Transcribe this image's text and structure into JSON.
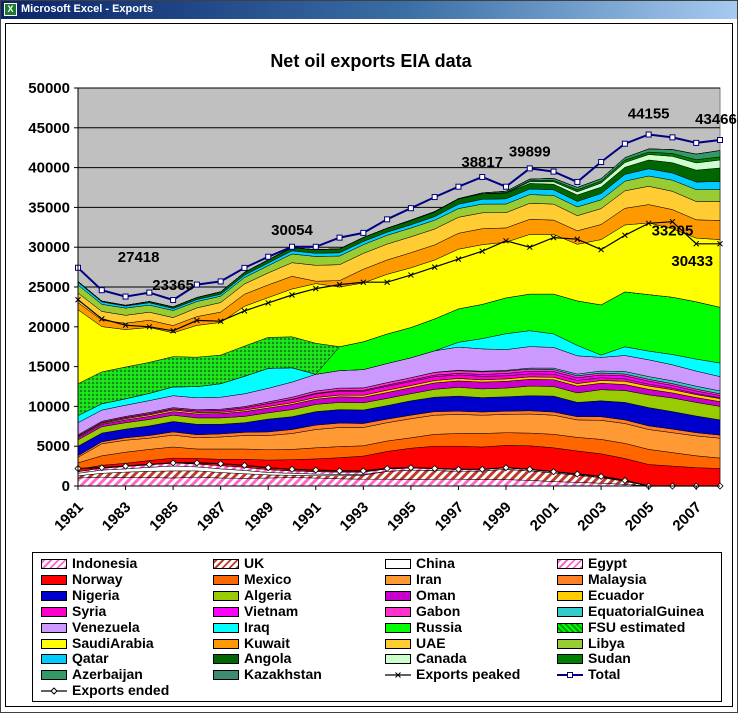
{
  "window": {
    "title": "Microsoft Excel - Exports",
    "icon": "excel-icon"
  },
  "chart_data": {
    "type": "area",
    "stacked": true,
    "title": "Net oil exports EIA data",
    "xlabel": "",
    "ylabel": "",
    "ylim": [
      0,
      50000
    ],
    "yticks": [
      0,
      5000,
      10000,
      15000,
      20000,
      25000,
      30000,
      35000,
      40000,
      45000,
      50000
    ],
    "x": [
      1981,
      1982,
      1983,
      1984,
      1985,
      1986,
      1987,
      1988,
      1989,
      1990,
      1991,
      1992,
      1993,
      1994,
      1995,
      1996,
      1997,
      1998,
      1999,
      2000,
      2001,
      2002,
      2003,
      2004,
      2005,
      2006,
      2007,
      2008
    ],
    "xtick_labels": [
      "1981",
      "1983",
      "1985",
      "1987",
      "1989",
      "1991",
      "1993",
      "1995",
      "1997",
      "1999",
      "2001",
      "2003",
      "2005",
      "2007"
    ],
    "grid": true,
    "plot_background": "#c0c0c0",
    "legend_position": "bottom",
    "series": [
      {
        "name": "Indonesia",
        "color": "#ff99cc",
        "pattern": "hatch-light",
        "values": [
          1000,
          1100,
          1050,
          1050,
          1000,
          1100,
          1000,
          950,
          1000,
          1050,
          1000,
          900,
          850,
          850,
          800,
          850,
          850,
          800,
          800,
          700,
          550,
          450,
          350,
          200,
          0,
          0,
          0,
          0
        ]
      },
      {
        "name": "UK",
        "color": "#c0504d",
        "pattern": "hatch-dark",
        "values": [
          300,
          500,
          700,
          800,
          900,
          800,
          700,
          600,
          400,
          300,
          300,
          400,
          500,
          1000,
          1200,
          1100,
          1000,
          1100,
          1300,
          1200,
          1100,
          900,
          700,
          400,
          0,
          0,
          0,
          0
        ]
      },
      {
        "name": "China",
        "color": "#ffffff",
        "pattern": "solid",
        "values": [
          300,
          400,
          400,
          500,
          600,
          500,
          450,
          400,
          300,
          250,
          200,
          150,
          100,
          0,
          0,
          0,
          0,
          0,
          0,
          0,
          0,
          0,
          0,
          0,
          0,
          0,
          0,
          0
        ]
      },
      {
        "name": "Egypt",
        "color": "#ff99cc",
        "pattern": "hatch-light",
        "values": [
          200,
          250,
          300,
          350,
          400,
          350,
          400,
          400,
          350,
          300,
          300,
          300,
          300,
          300,
          250,
          250,
          250,
          200,
          200,
          150,
          150,
          100,
          100,
          50,
          0,
          0,
          0,
          0
        ]
      },
      {
        "name": "Norway",
        "color": "#ff0000",
        "values": [
          300,
          350,
          400,
          500,
          600,
          700,
          800,
          1000,
          1200,
          1400,
          1600,
          1800,
          2000,
          2200,
          2500,
          2800,
          2900,
          2800,
          2800,
          3000,
          3000,
          2950,
          2900,
          2800,
          2700,
          2500,
          2300,
          2200
        ]
      },
      {
        "name": "Mexico",
        "color": "#ff6600",
        "values": [
          800,
          1200,
          1400,
          1400,
          1400,
          1200,
          1300,
          1300,
          1300,
          1300,
          1400,
          1400,
          1300,
          1300,
          1300,
          1500,
          1600,
          1700,
          1600,
          1600,
          1700,
          1700,
          1800,
          1900,
          1900,
          1700,
          1500,
          1300
        ]
      },
      {
        "name": "Iran",
        "color": "#ff9933",
        "values": [
          700,
          1500,
          1500,
          1400,
          1500,
          1400,
          1500,
          1700,
          1800,
          2000,
          2300,
          2400,
          2300,
          2300,
          2400,
          2400,
          2400,
          2300,
          2300,
          2400,
          2400,
          2200,
          2400,
          2500,
          2500,
          2500,
          2500,
          2500
        ]
      },
      {
        "name": "Malaysia",
        "color": "#ff7f27",
        "values": [
          200,
          250,
          300,
          350,
          400,
          400,
          400,
          400,
          450,
          500,
          550,
          550,
          500,
          450,
          450,
          450,
          400,
          400,
          400,
          400,
          400,
          400,
          450,
          450,
          450,
          450,
          400,
          400
        ]
      },
      {
        "name": "Nigeria",
        "color": "#0000cc",
        "values": [
          1200,
          1100,
          1100,
          1200,
          1300,
          1300,
          1200,
          1200,
          1600,
          1600,
          1700,
          1700,
          1700,
          1700,
          1800,
          1800,
          1900,
          1800,
          1800,
          1900,
          2000,
          1800,
          2000,
          2200,
          2300,
          2200,
          2100,
          1900
        ]
      },
      {
        "name": "Algeria",
        "color": "#99cc00",
        "values": [
          800,
          800,
          800,
          800,
          800,
          800,
          800,
          800,
          800,
          900,
          900,
          900,
          900,
          900,
          900,
          1000,
          1100,
          1100,
          1100,
          1200,
          1200,
          1200,
          1400,
          1500,
          1600,
          1700,
          1700,
          1700
        ]
      },
      {
        "name": "Oman",
        "color": "#cc00cc",
        "values": [
          300,
          300,
          350,
          400,
          450,
          500,
          550,
          600,
          600,
          650,
          650,
          700,
          700,
          750,
          750,
          800,
          800,
          850,
          850,
          850,
          850,
          850,
          800,
          750,
          700,
          650,
          600,
          600
        ]
      },
      {
        "name": "Ecuador",
        "color": "#ffcc00",
        "values": [
          100,
          120,
          150,
          180,
          200,
          180,
          150,
          180,
          200,
          200,
          220,
          220,
          250,
          280,
          280,
          300,
          300,
          280,
          300,
          300,
          300,
          320,
          350,
          400,
          400,
          400,
          380,
          380
        ]
      },
      {
        "name": "Syria",
        "color": "#ff00cc",
        "values": [
          100,
          120,
          150,
          150,
          150,
          200,
          250,
          300,
          350,
          400,
          450,
          500,
          500,
          500,
          500,
          500,
          450,
          450,
          400,
          400,
          400,
          400,
          350,
          300,
          250,
          200,
          150,
          100
        ]
      },
      {
        "name": "Vietnam",
        "color": "#ff00ff",
        "values": [
          0,
          0,
          0,
          0,
          0,
          0,
          0,
          0,
          20,
          50,
          80,
          100,
          120,
          140,
          160,
          180,
          200,
          240,
          280,
          310,
          320,
          320,
          340,
          380,
          360,
          330,
          310,
          280
        ]
      },
      {
        "name": "Gabon",
        "color": "#ff33cc",
        "values": [
          150,
          140,
          150,
          150,
          150,
          150,
          150,
          150,
          200,
          250,
          280,
          280,
          300,
          320,
          320,
          340,
          340,
          320,
          300,
          280,
          260,
          250,
          250,
          240,
          240,
          230,
          230,
          220
        ]
      },
      {
        "name": "EquatorialGuinea",
        "color": "#33cccc",
        "values": [
          0,
          0,
          0,
          0,
          0,
          0,
          0,
          0,
          0,
          0,
          0,
          0,
          0,
          0,
          0,
          20,
          60,
          80,
          100,
          120,
          180,
          220,
          260,
          320,
          350,
          360,
          370,
          370
        ]
      },
      {
        "name": "Venezuela",
        "color": "#cc99ff",
        "values": [
          1500,
          1400,
          1400,
          1500,
          1500,
          1500,
          1500,
          1600,
          1700,
          1900,
          2100,
          2200,
          2300,
          2400,
          2500,
          2700,
          2900,
          2800,
          2600,
          2700,
          2600,
          2300,
          1700,
          2000,
          2100,
          2000,
          1900,
          1800
        ]
      },
      {
        "name": "Iraq",
        "color": "#00ffff",
        "values": [
          900,
          800,
          800,
          900,
          1100,
          1400,
          1700,
          2200,
          2500,
          1800,
          0,
          0,
          0,
          0,
          0,
          0,
          600,
          1300,
          2000,
          2000,
          1700,
          1300,
          300,
          1100,
          1100,
          1300,
          1500,
          1700
        ]
      },
      {
        "name": "Russia",
        "color": "#00ff00",
        "values": [
          0,
          0,
          0,
          0,
          0,
          0,
          0,
          0,
          0,
          0,
          0,
          3000,
          3500,
          3700,
          3800,
          4000,
          4200,
          4300,
          4500,
          4600,
          5000,
          5600,
          6300,
          6900,
          7100,
          7200,
          7200,
          7000
        ]
      },
      {
        "name": "FSU estimated",
        "color": "#33cc33",
        "pattern": "dotted",
        "values": [
          4000,
          4000,
          4000,
          3900,
          3800,
          3700,
          3600,
          3800,
          3900,
          3900,
          3900,
          0,
          0,
          0,
          0,
          0,
          0,
          0,
          0,
          0,
          0,
          0,
          0,
          0,
          0,
          0,
          0,
          0
        ]
      },
      {
        "name": "SaudiArabia",
        "color": "#ffff00",
        "values": [
          9300,
          5700,
          4700,
          4400,
          3000,
          4000,
          4100,
          5000,
          5000,
          6000,
          7500,
          7500,
          7400,
          7500,
          7500,
          7400,
          7500,
          7500,
          7000,
          7500,
          7500,
          7100,
          8200,
          8400,
          9000,
          8600,
          8000,
          8500
        ]
      },
      {
        "name": "Kuwait",
        "color": "#ff9900",
        "values": [
          900,
          800,
          800,
          900,
          900,
          1100,
          1300,
          1500,
          1600,
          1600,
          300,
          800,
          1700,
          1800,
          1900,
          1900,
          2000,
          2000,
          1800,
          1900,
          1800,
          1700,
          1900,
          2100,
          2300,
          2400,
          2300,
          2400
        ]
      },
      {
        "name": "UAE",
        "color": "#ffcc33",
        "values": [
          1200,
          1100,
          1000,
          1000,
          1000,
          1100,
          1200,
          1300,
          1500,
          1700,
          2000,
          2000,
          2000,
          2000,
          2000,
          2000,
          2000,
          2000,
          1900,
          2000,
          2000,
          1900,
          2000,
          2200,
          2300,
          2300,
          2300,
          2400
        ]
      },
      {
        "name": "Libya",
        "color": "#99cc33",
        "values": [
          1000,
          900,
          900,
          900,
          900,
          800,
          800,
          800,
          900,
          1100,
          1100,
          1100,
          1100,
          1100,
          1100,
          1100,
          1100,
          1100,
          1100,
          1100,
          1100,
          1100,
          1100,
          1200,
          1300,
          1400,
          1500,
          1500
        ]
      },
      {
        "name": "Qatar",
        "color": "#00ccff",
        "values": [
          350,
          300,
          250,
          300,
          250,
          250,
          250,
          300,
          350,
          400,
          400,
          400,
          400,
          400,
          400,
          450,
          550,
          600,
          650,
          700,
          700,
          700,
          800,
          850,
          900,
          900,
          950,
          1000
        ]
      },
      {
        "name": "Angola",
        "color": "#006600",
        "values": [
          100,
          100,
          100,
          150,
          200,
          250,
          300,
          350,
          400,
          400,
          450,
          500,
          500,
          500,
          550,
          600,
          650,
          700,
          700,
          700,
          700,
          800,
          800,
          900,
          1100,
          1300,
          1500,
          1700
        ]
      },
      {
        "name": "Canada",
        "color": "#ccffcc",
        "values": [
          0,
          0,
          0,
          0,
          0,
          0,
          0,
          0,
          0,
          0,
          0,
          0,
          0,
          0,
          0,
          0,
          0,
          0,
          0,
          200,
          300,
          400,
          500,
          600,
          700,
          800,
          900,
          1000
        ]
      },
      {
        "name": "Sudan",
        "color": "#008000",
        "values": [
          0,
          0,
          0,
          0,
          0,
          0,
          0,
          0,
          0,
          0,
          0,
          0,
          0,
          0,
          0,
          0,
          0,
          0,
          100,
          150,
          200,
          250,
          250,
          300,
          300,
          350,
          400,
          400
        ]
      },
      {
        "name": "Azerbaijan",
        "color": "#339966",
        "values": [
          0,
          0,
          0,
          0,
          0,
          0,
          0,
          0,
          0,
          0,
          0,
          0,
          0,
          0,
          50,
          50,
          50,
          100,
          150,
          200,
          250,
          300,
          300,
          300,
          400,
          500,
          700,
          800
        ]
      },
      {
        "name": "Kazakhstan",
        "color": "#3d8c70",
        "values": [
          0,
          0,
          0,
          0,
          0,
          0,
          0,
          0,
          0,
          0,
          0,
          0,
          0,
          0,
          0,
          0,
          0,
          0,
          0,
          0,
          0,
          0,
          0,
          0,
          0,
          0,
          0,
          0
        ]
      }
    ],
    "lines": [
      {
        "name": "Exports ended",
        "color": "#000000",
        "marker": "diamond",
        "values": [
          2200,
          2300,
          2500,
          2700,
          2900,
          2900,
          2800,
          2600,
          2300,
          2100,
          2000,
          1900,
          1900,
          2200,
          2300,
          2200,
          2100,
          2100,
          2300,
          2100,
          1800,
          1500,
          1200,
          700,
          0,
          0,
          0,
          0
        ]
      },
      {
        "name": "Exports peaked",
        "color": "#000000",
        "marker": "x",
        "values": [
          23400,
          21000,
          20200,
          20000,
          19500,
          20800,
          20700,
          22000,
          23000,
          24000,
          24800,
          25300,
          25600,
          25600,
          26500,
          27500,
          28500,
          29500,
          30800,
          30000,
          31200,
          31000,
          29700,
          31500,
          33000,
          33205,
          30433,
          30433
        ]
      },
      {
        "name": "Total",
        "color": "#000080",
        "marker": "square",
        "values": [
          27418,
          24600,
          23800,
          24300,
          23365,
          25300,
          25700,
          27400,
          28800,
          30054,
          30050,
          31200,
          31800,
          33500,
          34900,
          36300,
          37600,
          38817,
          37600,
          39899,
          39500,
          38200,
          40700,
          43000,
          44155,
          43800,
          43100,
          43466
        ]
      }
    ],
    "annotations": [
      {
        "text": "27418",
        "x": 1982,
        "y": 27418
      },
      {
        "text": "23365",
        "x": 1985,
        "y": 23365
      },
      {
        "text": "30054",
        "x": 1990,
        "y": 30054
      },
      {
        "text": "38817",
        "x": 1998,
        "y": 38817
      },
      {
        "text": "39899",
        "x": 2000,
        "y": 39899
      },
      {
        "text": "44155",
        "x": 2005,
        "y": 44155
      },
      {
        "text": "43466",
        "x": 2008,
        "y": 43466
      },
      {
        "text": "33205",
        "x": 2006,
        "y": 33205
      },
      {
        "text": "30433",
        "x": 2007,
        "y": 30433
      }
    ]
  }
}
